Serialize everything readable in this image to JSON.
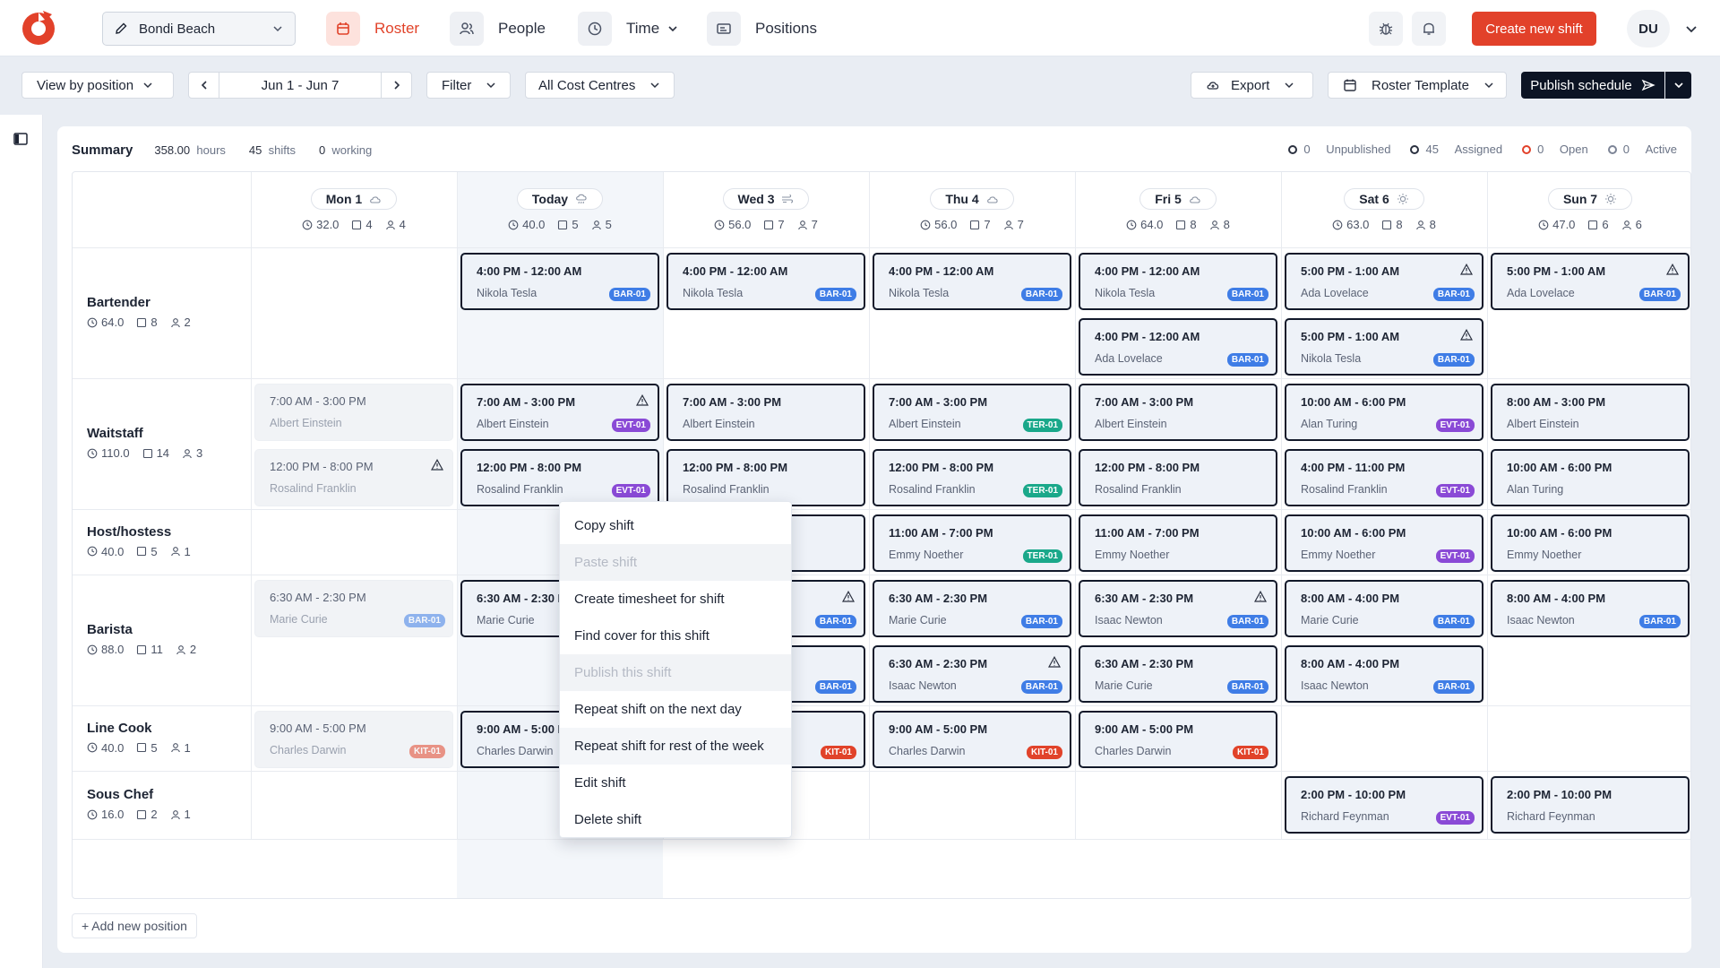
{
  "nav": {
    "location": "Bondi Beach",
    "items": [
      {
        "label": "Roster",
        "icon": "calendar-icon",
        "active": true
      },
      {
        "label": "People",
        "icon": "people-icon"
      },
      {
        "label": "Time",
        "icon": "clock-icon"
      },
      {
        "label": "Positions",
        "icon": "id-card-icon"
      }
    ],
    "create_label": "Create new shift",
    "user_initials": "DU"
  },
  "toolbar": {
    "view_by": "View by position",
    "date_range": "Jun 1 - Jun 7",
    "filter": "Filter",
    "cost_centres": "All Cost Centres",
    "export": "Export",
    "template": "Roster Template",
    "publish": "Publish schedule"
  },
  "summary": {
    "title": "Summary",
    "hours_value": "358.00",
    "hours_label": "hours",
    "shifts_value": "45",
    "shifts_label": "shifts",
    "working_value": "0",
    "working_label": "working",
    "unpublished_value": "0",
    "unpublished_label": "Unpublished",
    "assigned_value": "45",
    "assigned_label": "Assigned",
    "open_value": "0",
    "open_label": "Open",
    "active_value": "0",
    "active_label": "Active"
  },
  "days": [
    {
      "label": "Mon 1",
      "hours": "32.0",
      "shifts": "4",
      "people": "4",
      "weather": "cloud"
    },
    {
      "label": "Today",
      "hours": "40.0",
      "shifts": "5",
      "people": "5",
      "weather": "rain",
      "today": true
    },
    {
      "label": "Wed 3",
      "hours": "56.0",
      "shifts": "7",
      "people": "7",
      "weather": "wind"
    },
    {
      "label": "Thu 4",
      "hours": "56.0",
      "shifts": "7",
      "people": "7",
      "weather": "cloud"
    },
    {
      "label": "Fri 5",
      "hours": "64.0",
      "shifts": "8",
      "people": "8",
      "weather": "cloud"
    },
    {
      "label": "Sat 6",
      "hours": "63.0",
      "shifts": "8",
      "people": "8",
      "weather": "sun"
    },
    {
      "label": "Sun 7",
      "hours": "47.0",
      "shifts": "6",
      "people": "6",
      "weather": "sun"
    }
  ],
  "positions": [
    {
      "name": "Bartender",
      "hours": "64.0",
      "shifts": "8",
      "people": "2"
    },
    {
      "name": "Waitstaff",
      "hours": "110.0",
      "shifts": "14",
      "people": "3"
    },
    {
      "name": "Host/hostess",
      "hours": "40.0",
      "shifts": "5",
      "people": "1"
    },
    {
      "name": "Barista",
      "hours": "88.0",
      "shifts": "11",
      "people": "2"
    },
    {
      "name": "Line Cook",
      "hours": "40.0",
      "shifts": "5",
      "people": "1"
    },
    {
      "name": "Sous Chef",
      "hours": "16.0",
      "shifts": "2",
      "people": "1"
    }
  ],
  "badge_colors": {
    "BAR-01": "#3f7de6",
    "EVT-01": "#8a4ad6",
    "TER-01": "#1aa88a",
    "KIT-01": "#e1432a"
  },
  "shifts": [
    {
      "day": 1,
      "slot": 0,
      "time": "4:00 PM - 12:00 AM",
      "person": "Nikola Tesla",
      "badge": "BAR-01"
    },
    {
      "day": 2,
      "slot": 0,
      "time": "4:00 PM - 12:00 AM",
      "person": "Nikola Tesla",
      "badge": "BAR-01"
    },
    {
      "day": 3,
      "slot": 0,
      "time": "4:00 PM - 12:00 AM",
      "person": "Nikola Tesla",
      "badge": "BAR-01"
    },
    {
      "day": 4,
      "slot": 0,
      "time": "4:00 PM - 12:00 AM",
      "person": "Nikola Tesla",
      "badge": "BAR-01"
    },
    {
      "day": 5,
      "slot": 0,
      "time": "5:00 PM - 1:00 AM",
      "person": "Ada Lovelace",
      "badge": "BAR-01",
      "warn": true
    },
    {
      "day": 6,
      "slot": 0,
      "time": "5:00 PM - 1:00 AM",
      "person": "Ada Lovelace",
      "badge": "BAR-01",
      "warn": true
    },
    {
      "day": 4,
      "slot": 1,
      "time": "4:00 PM - 12:00 AM",
      "person": "Ada Lovelace",
      "badge": "BAR-01"
    },
    {
      "day": 5,
      "slot": 1,
      "time": "5:00 PM - 1:00 AM",
      "person": "Nikola Tesla",
      "badge": "BAR-01",
      "warn": true
    },
    {
      "day": 0,
      "slot": 2,
      "time": "7:00 AM - 3:00 PM",
      "person": "Albert Einstein",
      "past": true
    },
    {
      "day": 1,
      "slot": 2,
      "time": "7:00 AM - 3:00 PM",
      "person": "Albert Einstein",
      "badge": "EVT-01",
      "warn": true
    },
    {
      "day": 2,
      "slot": 2,
      "time": "7:00 AM - 3:00 PM",
      "person": "Albert Einstein"
    },
    {
      "day": 3,
      "slot": 2,
      "time": "7:00 AM - 3:00 PM",
      "person": "Albert Einstein",
      "badge": "TER-01"
    },
    {
      "day": 4,
      "slot": 2,
      "time": "7:00 AM - 3:00 PM",
      "person": "Albert Einstein"
    },
    {
      "day": 5,
      "slot": 2,
      "time": "10:00 AM - 6:00 PM",
      "person": "Alan Turing",
      "badge": "EVT-01"
    },
    {
      "day": 6,
      "slot": 2,
      "time": "8:00 AM - 3:00 PM",
      "person": "Albert Einstein"
    },
    {
      "day": 0,
      "slot": 3,
      "time": "12:00 PM - 8:00 PM",
      "person": "Rosalind Franklin",
      "past": true,
      "warn": true
    },
    {
      "day": 1,
      "slot": 3,
      "time": "12:00 PM - 8:00 PM",
      "person": "Rosalind Franklin",
      "badge": "EVT-01"
    },
    {
      "day": 2,
      "slot": 3,
      "time": "12:00 PM - 8:00 PM",
      "person": "Rosalind Franklin"
    },
    {
      "day": 3,
      "slot": 3,
      "time": "12:00 PM - 8:00 PM",
      "person": "Rosalind Franklin",
      "badge": "TER-01"
    },
    {
      "day": 4,
      "slot": 3,
      "time": "12:00 PM - 8:00 PM",
      "person": "Rosalind Franklin"
    },
    {
      "day": 5,
      "slot": 3,
      "time": "4:00 PM - 11:00 PM",
      "person": "Rosalind Franklin",
      "badge": "EVT-01"
    },
    {
      "day": 6,
      "slot": 3,
      "time": "10:00 AM - 6:00 PM",
      "person": "Alan Turing"
    },
    {
      "day": 2,
      "slot": 4,
      "time": "",
      "person": ""
    },
    {
      "day": 3,
      "slot": 4,
      "time": "11:00 AM - 7:00 PM",
      "person": "Emmy Noether",
      "badge": "TER-01"
    },
    {
      "day": 4,
      "slot": 4,
      "time": "11:00 AM - 7:00 PM",
      "person": "Emmy Noether"
    },
    {
      "day": 5,
      "slot": 4,
      "time": "10:00 AM - 6:00 PM",
      "person": "Emmy Noether",
      "badge": "EVT-01"
    },
    {
      "day": 6,
      "slot": 4,
      "time": "10:00 AM - 6:00 PM",
      "person": "Emmy Noether"
    },
    {
      "day": 0,
      "slot": 5,
      "time": "6:30 AM - 2:30 PM",
      "person": "Marie Curie",
      "badge": "BAR-01",
      "past": true
    },
    {
      "day": 1,
      "slot": 5,
      "time": "6:30 AM - 2:30 PM",
      "person": "Marie Curie"
    },
    {
      "day": 2,
      "slot": 5,
      "time": "",
      "person": "",
      "badge": "BAR-01",
      "warn": true
    },
    {
      "day": 3,
      "slot": 5,
      "time": "6:30 AM - 2:30 PM",
      "person": "Marie Curie",
      "badge": "BAR-01"
    },
    {
      "day": 4,
      "slot": 5,
      "time": "6:30 AM - 2:30 PM",
      "person": "Isaac Newton",
      "badge": "BAR-01",
      "warn": true
    },
    {
      "day": 5,
      "slot": 5,
      "time": "8:00 AM - 4:00 PM",
      "person": "Marie Curie",
      "badge": "BAR-01"
    },
    {
      "day": 6,
      "slot": 5,
      "time": "8:00 AM - 4:00 PM",
      "person": "Isaac Newton",
      "badge": "BAR-01"
    },
    {
      "day": 2,
      "slot": 6,
      "time": "",
      "person": "",
      "badge": "BAR-01"
    },
    {
      "day": 3,
      "slot": 6,
      "time": "6:30 AM - 2:30 PM",
      "person": "Isaac Newton",
      "badge": "BAR-01",
      "warn": true
    },
    {
      "day": 4,
      "slot": 6,
      "time": "6:30 AM - 2:30 PM",
      "person": "Marie Curie",
      "badge": "BAR-01"
    },
    {
      "day": 5,
      "slot": 6,
      "time": "8:00 AM - 4:00 PM",
      "person": "Isaac Newton",
      "badge": "BAR-01"
    },
    {
      "day": 0,
      "slot": 7,
      "time": "9:00 AM - 5:00 PM",
      "person": "Charles Darwin",
      "badge": "KIT-01",
      "past": true
    },
    {
      "day": 1,
      "slot": 7,
      "time": "9:00 AM - 5:00 PM",
      "person": "Charles Darwin"
    },
    {
      "day": 2,
      "slot": 7,
      "time": "",
      "person": "",
      "badge": "KIT-01"
    },
    {
      "day": 3,
      "slot": 7,
      "time": "9:00 AM - 5:00 PM",
      "person": "Charles Darwin",
      "badge": "KIT-01"
    },
    {
      "day": 4,
      "slot": 7,
      "time": "9:00 AM - 5:00 PM",
      "person": "Charles Darwin",
      "badge": "KIT-01"
    },
    {
      "day": 5,
      "slot": 8,
      "time": "2:00 PM - 10:00 PM",
      "person": "Richard Feynman",
      "badge": "EVT-01"
    },
    {
      "day": 6,
      "slot": 8,
      "time": "2:00 PM - 10:00 PM",
      "person": "Richard Feynman"
    }
  ],
  "context_menu": [
    {
      "label": "Copy shift"
    },
    {
      "label": "Paste shift",
      "disabled": true
    },
    {
      "label": "Create timesheet for shift"
    },
    {
      "label": "Find cover for this shift"
    },
    {
      "label": "Publish this shift",
      "disabled": true
    },
    {
      "label": "Repeat shift on the next day"
    },
    {
      "label": "Repeat shift for rest of the week",
      "hover": true
    },
    {
      "label": "Edit shift"
    },
    {
      "label": "Delete shift"
    }
  ],
  "add_position": "+ Add new position"
}
